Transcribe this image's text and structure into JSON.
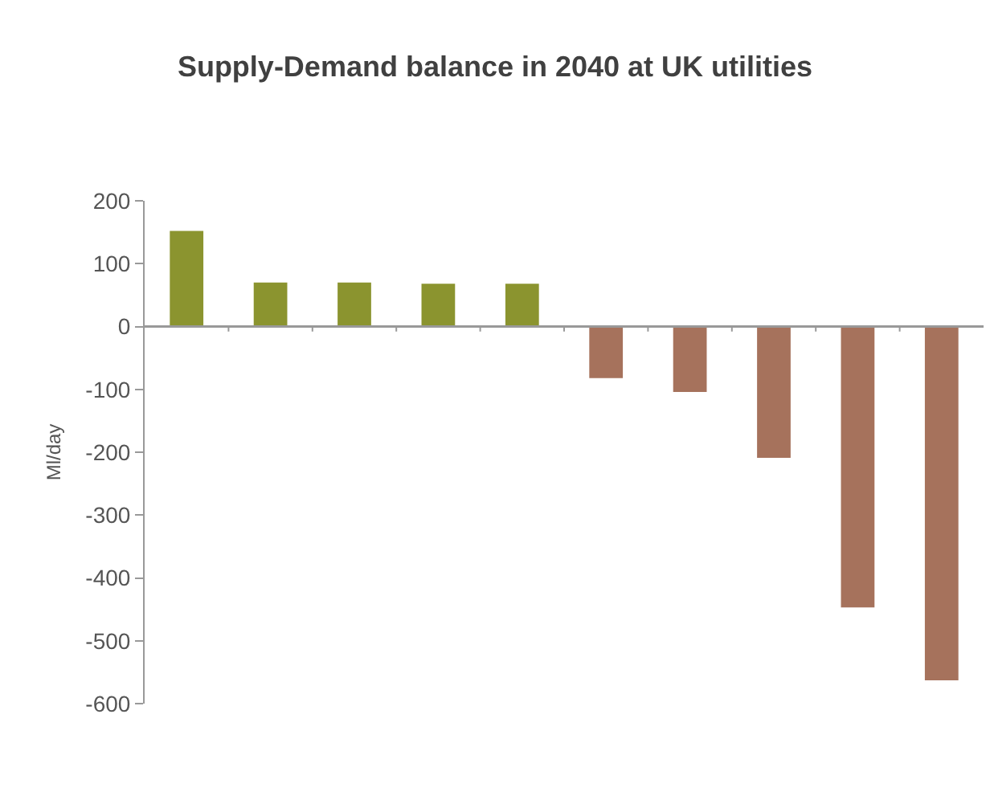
{
  "chart_data": {
    "type": "bar",
    "title": "Supply-Demand balance in 2040 at UK utilities",
    "ylabel": "Ml/day",
    "categories": [
      null,
      null,
      null,
      null,
      null,
      null,
      null,
      null,
      null,
      null
    ],
    "values": [
      152,
      70,
      70,
      68,
      68,
      -82,
      -104,
      -209,
      -447,
      -563
    ],
    "colors": [
      "#8b942f",
      "#8b942f",
      "#8b942f",
      "#8b942f",
      "#8b942f",
      "#a6725c",
      "#a6725c",
      "#a6725c",
      "#a6725c",
      "#a6725c"
    ],
    "ylim": [
      -600,
      200
    ],
    "yticks": [
      -600,
      -500,
      -400,
      -300,
      -200,
      -100,
      0,
      100,
      200
    ]
  }
}
